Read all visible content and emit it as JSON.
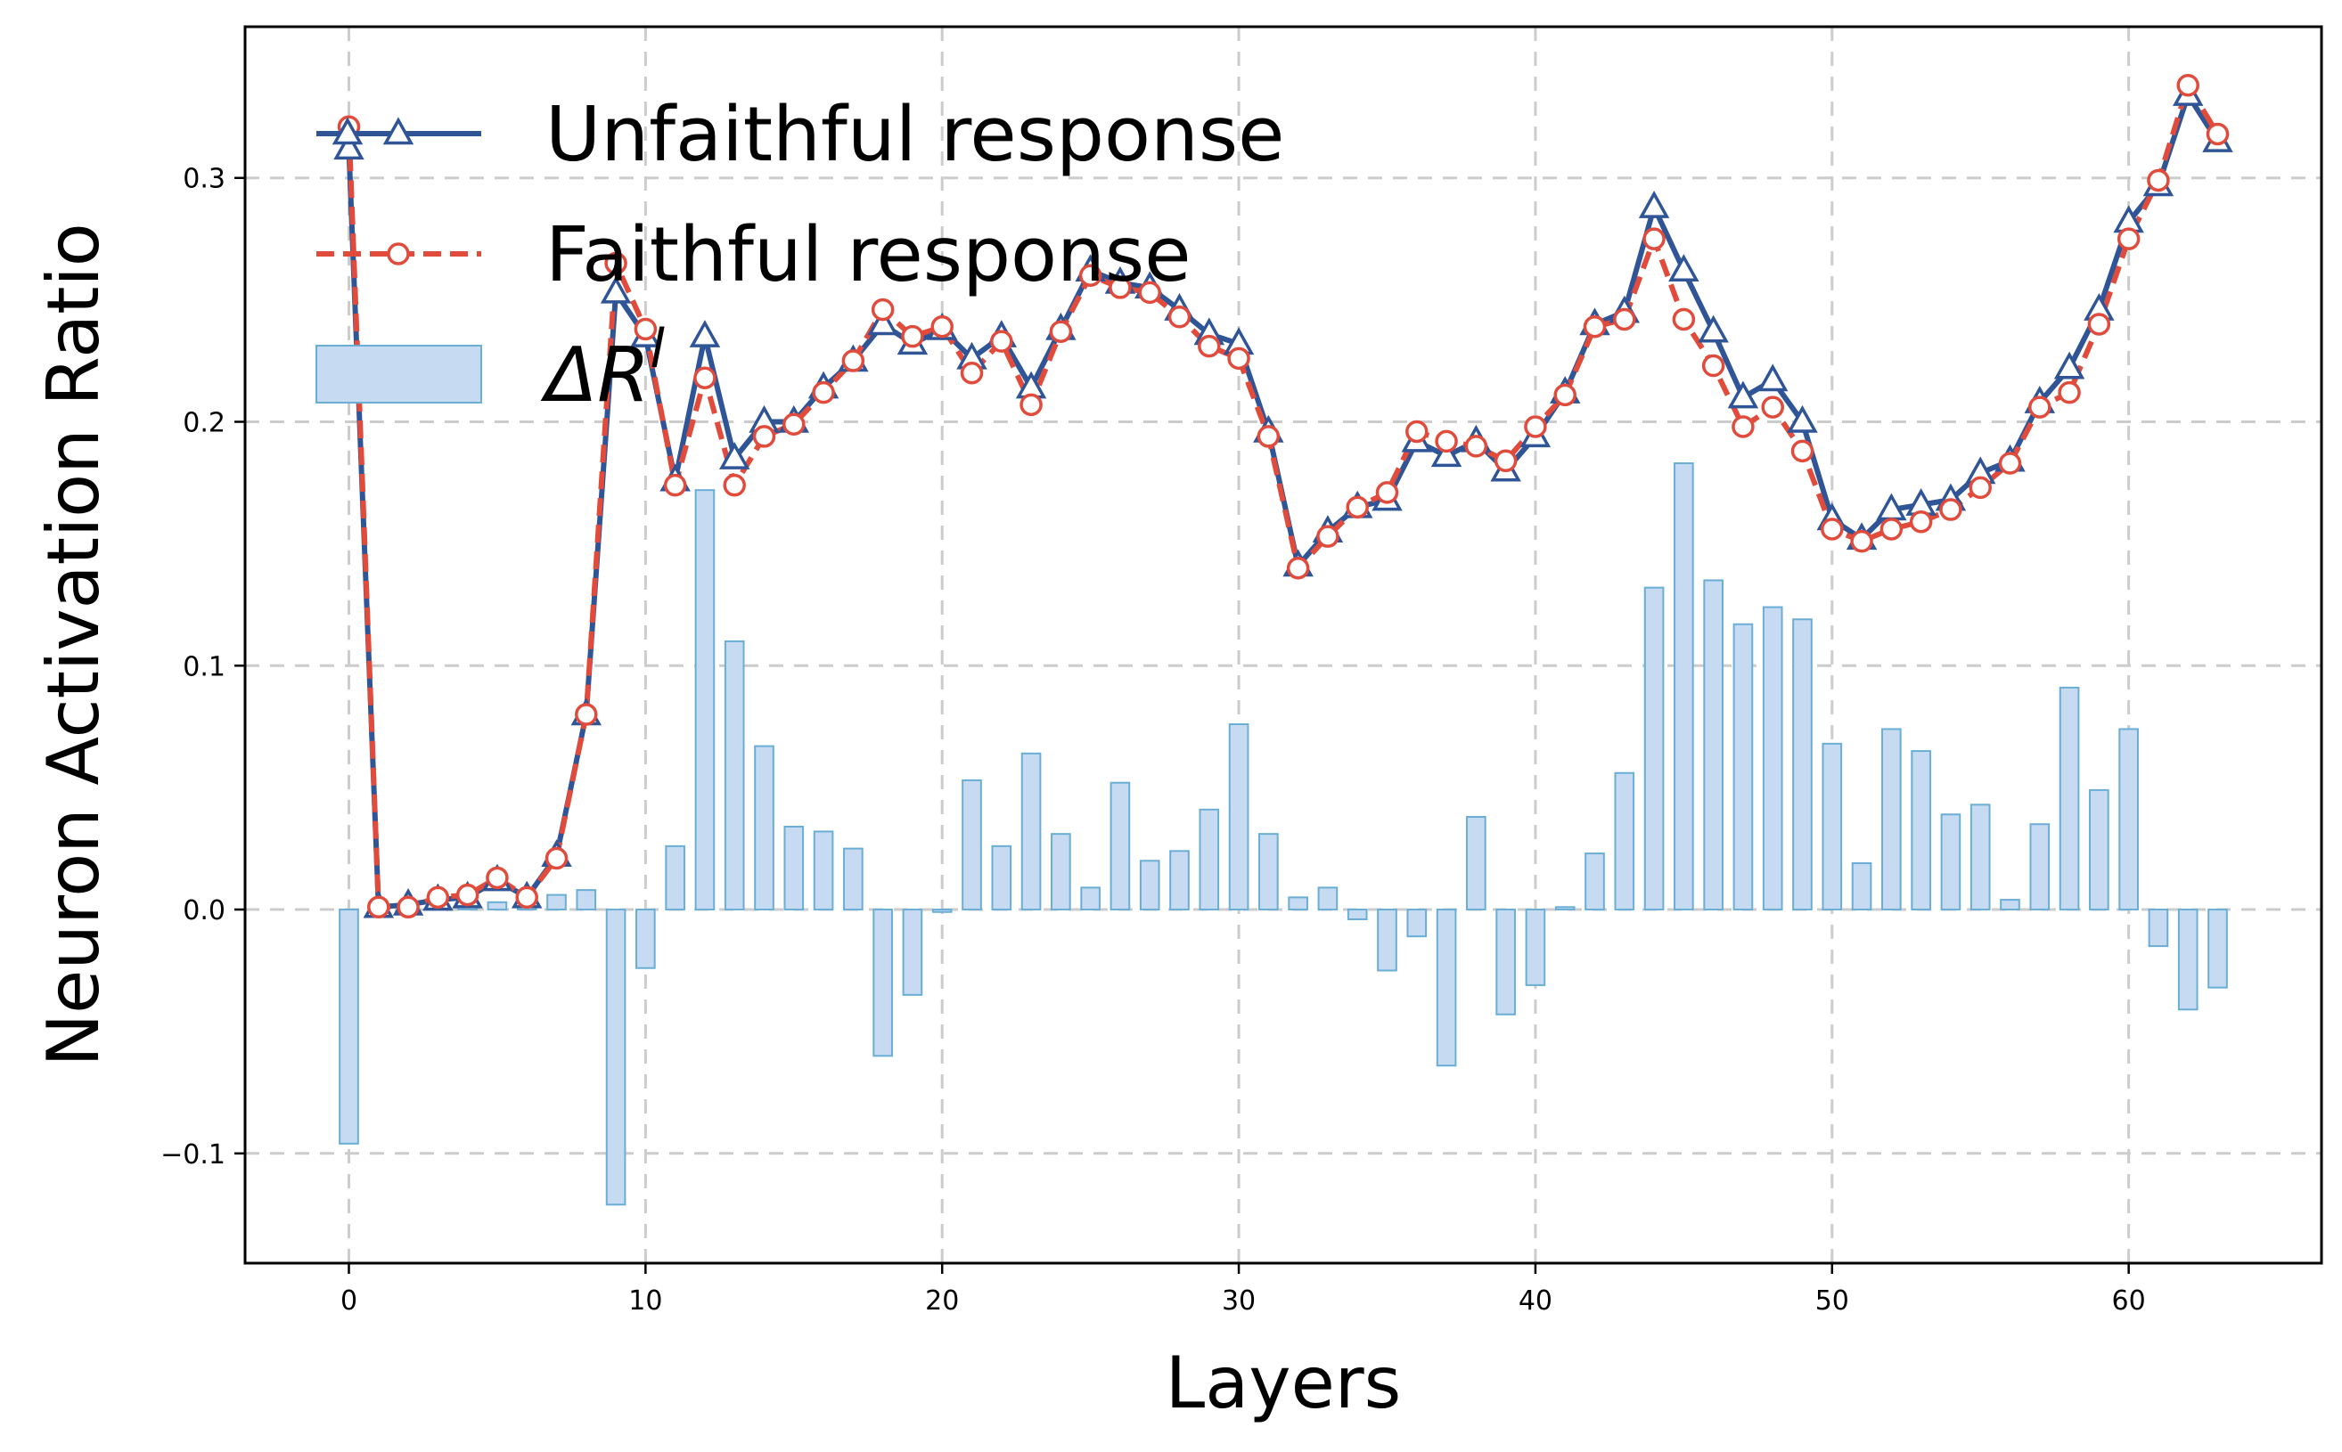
{
  "chart_data": {
    "type": "bar+line",
    "xlabel": "Layers",
    "ylabel": "Neuron Activation Ratio",
    "xlim": [
      -3.5,
      66.5
    ],
    "ylim": [
      -0.145,
      0.362
    ],
    "grid": true,
    "legend_position": "top-left",
    "x_ticks": [
      0,
      10,
      20,
      30,
      40,
      50,
      60
    ],
    "y_ticks": [
      -0.1,
      0.0,
      0.1,
      0.2,
      0.3
    ],
    "y_tick_labels": [
      "−0.1",
      "0.0",
      "0.1",
      "0.2",
      "0.3"
    ],
    "x": [
      0,
      1,
      2,
      3,
      4,
      5,
      6,
      7,
      8,
      9,
      10,
      11,
      12,
      13,
      14,
      15,
      16,
      17,
      18,
      19,
      20,
      21,
      22,
      23,
      24,
      25,
      26,
      27,
      28,
      29,
      30,
      31,
      32,
      33,
      34,
      35,
      36,
      37,
      38,
      39,
      40,
      41,
      42,
      43,
      44,
      45,
      46,
      47,
      48,
      49,
      50,
      51,
      52,
      53,
      54,
      55,
      56,
      57,
      58,
      59,
      60,
      61,
      62,
      63
    ],
    "series": [
      {
        "name": "Unfaithful response",
        "kind": "line",
        "color": "#2f5597",
        "marker": "triangle",
        "values": [
          0.312,
          0.001,
          0.002,
          0.004,
          0.005,
          0.012,
          0.005,
          0.022,
          0.08,
          0.253,
          0.235,
          0.176,
          0.235,
          0.185,
          0.2,
          0.2,
          0.214,
          0.225,
          0.24,
          0.232,
          0.238,
          0.226,
          0.235,
          0.214,
          0.238,
          0.262,
          0.257,
          0.255,
          0.246,
          0.236,
          0.232,
          0.196,
          0.141,
          0.155,
          0.165,
          0.168,
          0.192,
          0.186,
          0.192,
          0.18,
          0.194,
          0.212,
          0.24,
          0.245,
          0.288,
          0.262,
          0.237,
          0.21,
          0.217,
          0.2,
          0.16,
          0.152,
          0.164,
          0.166,
          0.168,
          0.179,
          0.184,
          0.208,
          0.222,
          0.246,
          0.282,
          0.297,
          0.334,
          0.315
        ]
      },
      {
        "name": "Faithful response",
        "kind": "line",
        "color": "#e04b3c",
        "marker": "circle",
        "values": [
          0.321,
          0.001,
          0.001,
          0.005,
          0.006,
          0.013,
          0.005,
          0.021,
          0.08,
          0.265,
          0.238,
          0.174,
          0.218,
          0.174,
          0.194,
          0.199,
          0.212,
          0.225,
          0.246,
          0.235,
          0.239,
          0.22,
          0.233,
          0.207,
          0.237,
          0.26,
          0.255,
          0.253,
          0.243,
          0.231,
          0.226,
          0.194,
          0.14,
          0.153,
          0.165,
          0.171,
          0.196,
          0.192,
          0.19,
          0.184,
          0.198,
          0.211,
          0.239,
          0.242,
          0.275,
          0.242,
          0.223,
          0.198,
          0.206,
          0.188,
          0.156,
          0.151,
          0.156,
          0.159,
          0.164,
          0.173,
          0.183,
          0.206,
          0.212,
          0.24,
          0.275,
          0.299,
          0.338,
          0.318
        ]
      },
      {
        "name": "ΔR",
        "name_superscript": "l",
        "kind": "bar",
        "color": "#c6dbf1",
        "edge_color": "#6aaed6",
        "values": [
          -0.096,
          0.001,
          0.001,
          0.001,
          0.001,
          0.003,
          0.001,
          0.006,
          0.008,
          -0.121,
          -0.024,
          0.026,
          0.172,
          0.11,
          0.067,
          0.034,
          0.032,
          0.025,
          -0.06,
          -0.035,
          -0.001,
          0.053,
          0.026,
          0.064,
          0.031,
          0.009,
          0.052,
          0.02,
          0.024,
          0.041,
          0.076,
          0.031,
          0.005,
          0.009,
          -0.004,
          -0.025,
          -0.011,
          -0.064,
          0.038,
          -0.043,
          -0.031,
          0.001,
          0.023,
          0.056,
          0.132,
          0.183,
          0.135,
          0.117,
          0.124,
          0.119,
          0.068,
          0.019,
          0.074,
          0.065,
          0.039,
          0.043,
          0.004,
          0.035,
          0.091,
          0.049,
          0.074,
          -0.015,
          -0.041,
          -0.032
        ]
      }
    ]
  }
}
